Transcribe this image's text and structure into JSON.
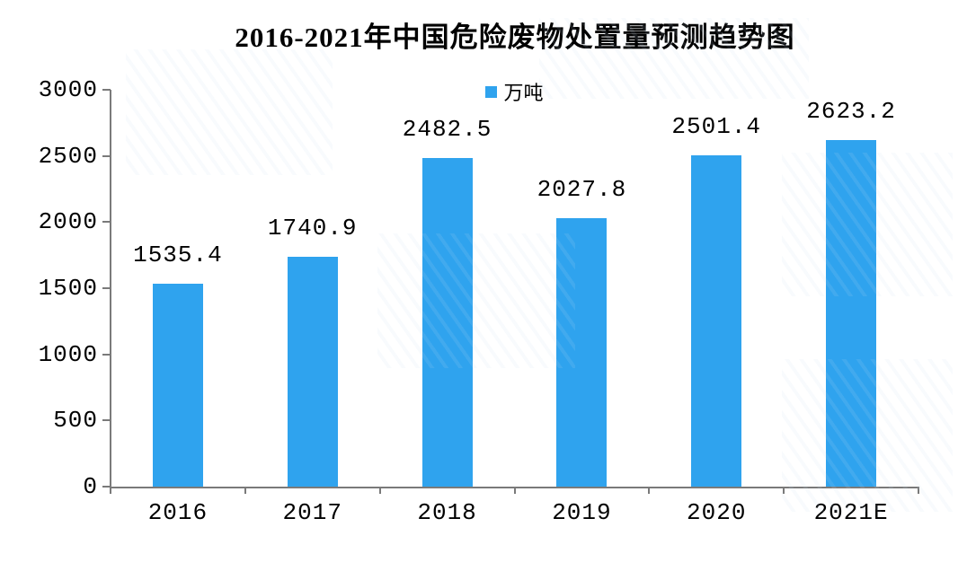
{
  "page": {
    "background": "#ffffff"
  },
  "title": "2016-2021年中国危险废物处置量预测趋势图",
  "legend": {
    "label": "万吨",
    "marker_color": "#2fa3ee"
  },
  "chart_data": {
    "type": "bar",
    "title": "2016-2021年中国危险废物处置量预测趋势图",
    "categories": [
      "2016",
      "2017",
      "2018",
      "2019",
      "2020",
      "2021E"
    ],
    "values": [
      1535.4,
      1740.9,
      2482.5,
      2027.8,
      2501.4,
      2623.2
    ],
    "data_labels": [
      "1535.4",
      "1740.9",
      "2482.5",
      "2027.8",
      "2501.4",
      "2623.2"
    ],
    "series_name": "万吨",
    "xlabel": "",
    "ylabel": "",
    "ylim": [
      0,
      3000
    ],
    "yticks": [
      0,
      500,
      1000,
      1500,
      2000,
      2500,
      3000
    ],
    "grid": false,
    "legend_position": "top-center",
    "bar_color": "#2fa3ee",
    "axis_color": "#7a7a7a",
    "text_color": "#000000"
  }
}
